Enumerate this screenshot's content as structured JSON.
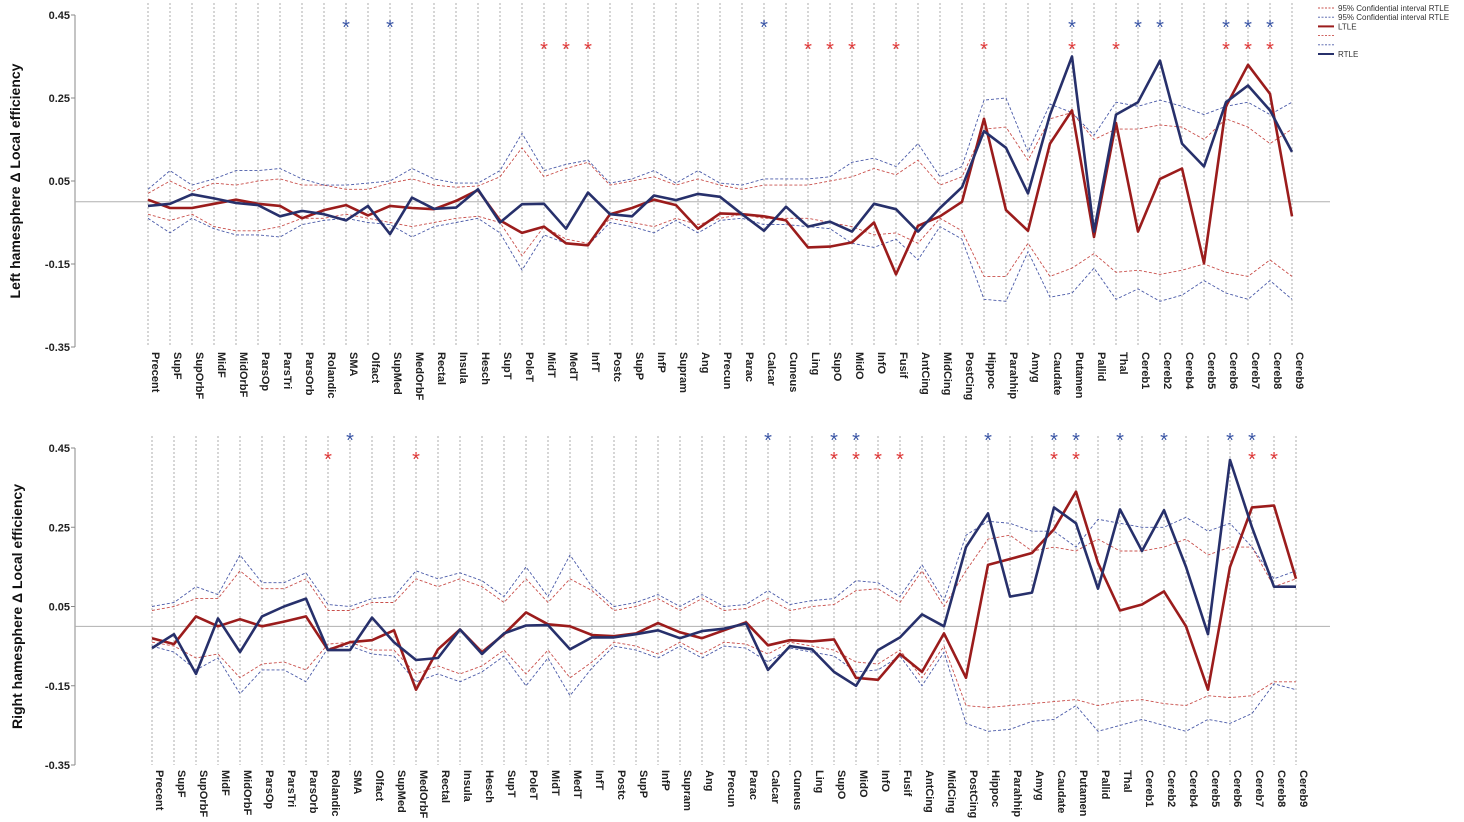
{
  "colors": {
    "ltle": "#9b1c1c",
    "rtle": "#27306b",
    "ltle_ci": "#c9504c",
    "rtle_ci": "#4a5aa8",
    "grid": "#9a9a9a",
    "refline": "#b0b0b0",
    "star_ltle": "#e03a3a",
    "star_rtle": "#3a55a5"
  },
  "legend": [
    {
      "label": "95% Confidential interval RTLE",
      "style": "dash",
      "color": "#c9504c"
    },
    {
      "label": "95% Confidential interval RTLE",
      "style": "dash",
      "color": "#4a5aa8"
    },
    {
      "label": "LTLE",
      "style": "solid",
      "color": "#9b1c1c"
    },
    {
      "label": "",
      "style": "dash",
      "color": "#c9504c"
    },
    {
      "label": "",
      "style": "dash",
      "color": "#4a5aa8"
    },
    {
      "label": "RTLE",
      "style": "solid",
      "color": "#27306b"
    }
  ],
  "chart_data": [
    {
      "type": "line",
      "title": "",
      "ylabel": "Left hamesphere Δ Local efficiency",
      "xlabel": "",
      "ylim": [
        -0.35,
        0.45
      ],
      "yticks": [
        "0.45",
        "0.25",
        "0.05",
        "-0.15",
        "-0.35"
      ],
      "reference_y": 0.0,
      "categories": [
        "Precent",
        "SupF",
        "SupOrbF",
        "MidF",
        "MidOrbF",
        "ParsOp",
        "ParsTri",
        "ParsOrb",
        "Rolandic",
        "SMA",
        "Olfact",
        "SupMed",
        "MedOrbF",
        "Rectal",
        "Insula",
        "Hesch",
        "SupT",
        "PoleT",
        "MidT",
        "MedT",
        "InfT",
        "Postc",
        "SupP",
        "InfP",
        "Supram",
        "Ang",
        "Precun",
        "Parac",
        "Calcar",
        "Cuneus",
        "Ling",
        "SupO",
        "MidO",
        "InfO",
        "Fusif",
        "AntCing",
        "MidCing",
        "PostCing",
        "Hippoc",
        "Parahhip",
        "Amyg",
        "Caudate",
        "Putamen",
        "Pallid",
        "Thal",
        "Cereb1",
        "Cereb2",
        "Cereb4",
        "Cereb5",
        "Cereb6",
        "Cereb7",
        "Cereb8",
        "Cereb9"
      ],
      "series": [
        {
          "name": "LTLE",
          "values": [
            0.005,
            -0.015,
            -0.015,
            -0.005,
            0.005,
            -0.005,
            -0.01,
            -0.04,
            -0.02,
            -0.008,
            -0.033,
            -0.01,
            -0.015,
            -0.018,
            0.002,
            0.028,
            -0.045,
            -0.075,
            -0.06,
            -0.1,
            -0.105,
            -0.03,
            -0.015,
            0.005,
            -0.008,
            -0.065,
            -0.028,
            -0.03,
            -0.035,
            -0.045,
            -0.11,
            -0.108,
            -0.098,
            -0.05,
            -0.175,
            -0.058,
            -0.035,
            0.0,
            0.2,
            -0.02,
            -0.07,
            0.14,
            0.22,
            -0.085,
            0.19,
            -0.072,
            0.055,
            0.08,
            -0.148,
            0.23,
            0.33,
            0.26,
            -0.035
          ]
        },
        {
          "name": "RTLE",
          "values": [
            -0.01,
            -0.005,
            0.018,
            0.008,
            -0.003,
            -0.008,
            -0.035,
            -0.022,
            -0.03,
            -0.045,
            -0.01,
            -0.078,
            0.01,
            -0.017,
            -0.014,
            0.03,
            -0.05,
            -0.006,
            -0.005,
            -0.065,
            0.022,
            -0.03,
            -0.035,
            0.015,
            0.004,
            0.019,
            0.012,
            -0.03,
            -0.07,
            -0.012,
            -0.06,
            -0.048,
            -0.072,
            -0.005,
            -0.018,
            -0.072,
            -0.015,
            0.035,
            0.17,
            0.13,
            0.02,
            0.21,
            0.35,
            -0.072,
            0.21,
            0.24,
            0.34,
            0.14,
            0.085,
            0.24,
            0.28,
            0.22,
            0.12
          ]
        },
        {
          "name": "LTLE 95% CI upper",
          "values": [
            0.02,
            0.05,
            0.025,
            0.045,
            0.04,
            0.05,
            0.055,
            0.04,
            0.04,
            0.03,
            0.03,
            0.045,
            0.055,
            0.04,
            0.035,
            0.038,
            0.06,
            0.13,
            0.06,
            0.08,
            0.095,
            0.04,
            0.05,
            0.06,
            0.04,
            0.055,
            0.04,
            0.03,
            0.04,
            0.04,
            0.04,
            0.05,
            0.06,
            0.08,
            0.065,
            0.1,
            0.04,
            0.06,
            0.175,
            0.18,
            0.1,
            0.2,
            0.215,
            0.15,
            0.175,
            0.175,
            0.185,
            0.18,
            0.15,
            0.2,
            0.18,
            0.14,
            0.175
          ]
        },
        {
          "name": "LTLE 95% CI lower",
          "values": [
            -0.03,
            -0.045,
            -0.03,
            -0.06,
            -0.07,
            -0.07,
            -0.06,
            -0.04,
            -0.04,
            -0.03,
            -0.04,
            -0.05,
            -0.06,
            -0.05,
            -0.04,
            -0.035,
            -0.05,
            -0.13,
            -0.06,
            -0.09,
            -0.1,
            -0.04,
            -0.05,
            -0.06,
            -0.04,
            -0.055,
            -0.04,
            -0.03,
            -0.04,
            -0.04,
            -0.04,
            -0.05,
            -0.06,
            -0.08,
            -0.075,
            -0.1,
            -0.04,
            -0.07,
            -0.18,
            -0.18,
            -0.1,
            -0.18,
            -0.16,
            -0.125,
            -0.17,
            -0.165,
            -0.175,
            -0.165,
            -0.15,
            -0.17,
            -0.18,
            -0.14,
            -0.18
          ]
        },
        {
          "name": "RTLE 95% CI upper",
          "values": [
            0.03,
            0.075,
            0.04,
            0.055,
            0.075,
            0.075,
            0.08,
            0.055,
            0.04,
            0.04,
            0.045,
            0.05,
            0.08,
            0.055,
            0.045,
            0.045,
            0.075,
            0.165,
            0.075,
            0.09,
            0.1,
            0.045,
            0.055,
            0.075,
            0.045,
            0.075,
            0.045,
            0.04,
            0.055,
            0.055,
            0.055,
            0.06,
            0.095,
            0.105,
            0.085,
            0.14,
            0.06,
            0.085,
            0.245,
            0.25,
            0.12,
            0.235,
            0.215,
            0.16,
            0.24,
            0.23,
            0.245,
            0.23,
            0.21,
            0.23,
            0.24,
            0.21,
            0.24
          ]
        },
        {
          "name": "RTLE 95% CI lower",
          "values": [
            -0.04,
            -0.075,
            -0.04,
            -0.065,
            -0.08,
            -0.08,
            -0.085,
            -0.055,
            -0.045,
            -0.04,
            -0.05,
            -0.055,
            -0.085,
            -0.06,
            -0.05,
            -0.04,
            -0.075,
            -0.165,
            -0.08,
            -0.1,
            -0.105,
            -0.05,
            -0.06,
            -0.075,
            -0.045,
            -0.075,
            -0.045,
            -0.04,
            -0.055,
            -0.055,
            -0.06,
            -0.065,
            -0.1,
            -0.11,
            -0.09,
            -0.14,
            -0.06,
            -0.09,
            -0.235,
            -0.24,
            -0.12,
            -0.23,
            -0.22,
            -0.16,
            -0.235,
            -0.21,
            -0.24,
            -0.225,
            -0.19,
            -0.22,
            -0.235,
            -0.19,
            -0.235
          ]
        }
      ],
      "stars_ltle": [
        "MidT",
        "MedT",
        "InfT",
        "Ling",
        "SupO",
        "MidO",
        "Fusif",
        "Hippoc",
        "Putamen",
        "Thal",
        "Cereb6",
        "Cereb7",
        "Cereb8"
      ],
      "stars_rtle": [
        "SMA",
        "SupMed",
        "Calcar",
        "Putamen",
        "Cereb1",
        "Cereb2",
        "Cereb6",
        "Cereb7",
        "Cereb8"
      ],
      "star_glyph": "*"
    },
    {
      "type": "line",
      "title": "",
      "ylabel": "Right hamesphere Δ Local efficiency",
      "xlabel": "",
      "ylim": [
        -0.35,
        0.45
      ],
      "yticks": [
        "0.45",
        "0.25",
        "0.05",
        "-0.15",
        "-0.35"
      ],
      "reference_y": 0.0,
      "categories": [
        "Precent",
        "SupF",
        "SupOrbF",
        "MidF",
        "MidOrbF",
        "ParsOp",
        "ParsTri",
        "ParsOrb",
        "Rolandic",
        "SMA",
        "Olfact",
        "SupMed",
        "MedOrbF",
        "Rectal",
        "Insula",
        "Hesch",
        "SupT",
        "PoleT",
        "MidT",
        "MedT",
        "InfT",
        "Postc",
        "SupP",
        "InfP",
        "Supram",
        "Ang",
        "Precun",
        "Parac",
        "Calcar",
        "Cuneus",
        "Ling",
        "SupO",
        "MidO",
        "InfO",
        "Fusif",
        "AntCing",
        "MidCing",
        "PostCing",
        "Hippoc",
        "Parahhip",
        "Amyg",
        "Caudate",
        "Putamen",
        "Pallid",
        "Thal",
        "Cereb1",
        "Cereb2",
        "Cereb4",
        "Cereb5",
        "Cereb6",
        "Cereb7",
        "Cereb8",
        "Cereb9"
      ],
      "series": [
        {
          "name": "LTLE",
          "values": [
            -0.03,
            -0.045,
            0.025,
            0.0,
            0.018,
            0.0,
            0.012,
            0.025,
            -0.06,
            -0.04,
            -0.035,
            -0.01,
            -0.16,
            -0.058,
            -0.008,
            -0.065,
            -0.02,
            0.035,
            0.005,
            0.0,
            -0.022,
            -0.025,
            -0.018,
            0.008,
            -0.015,
            -0.03,
            -0.01,
            0.01,
            -0.048,
            -0.035,
            -0.038,
            -0.033,
            -0.13,
            -0.135,
            -0.07,
            -0.115,
            -0.018,
            -0.13,
            0.155,
            0.17,
            0.185,
            0.245,
            0.34,
            0.16,
            0.04,
            0.055,
            0.088,
            0.0,
            -0.16,
            0.15,
            0.3,
            0.305,
            0.12
          ]
        },
        {
          "name": "RTLE",
          "values": [
            -0.055,
            -0.02,
            -0.12,
            0.02,
            -0.065,
            0.025,
            0.05,
            0.07,
            -0.06,
            -0.06,
            0.022,
            -0.04,
            -0.085,
            -0.08,
            -0.008,
            -0.07,
            -0.018,
            0.002,
            0.003,
            -0.058,
            -0.028,
            -0.028,
            -0.02,
            -0.01,
            -0.03,
            -0.012,
            -0.006,
            0.007,
            -0.11,
            -0.05,
            -0.058,
            -0.115,
            -0.15,
            -0.06,
            -0.028,
            0.03,
            0.0,
            0.2,
            0.285,
            0.075,
            0.085,
            0.3,
            0.26,
            0.095,
            0.295,
            0.19,
            0.293,
            0.15,
            -0.02,
            0.42,
            0.25,
            0.1,
            0.1
          ]
        },
        {
          "name": "LTLE 95% CI upper",
          "values": [
            0.04,
            0.05,
            0.07,
            0.07,
            0.14,
            0.095,
            0.095,
            0.12,
            0.04,
            0.04,
            0.06,
            0.06,
            0.12,
            0.1,
            0.12,
            0.1,
            0.06,
            0.12,
            0.06,
            0.12,
            0.09,
            0.04,
            0.05,
            0.07,
            0.04,
            0.07,
            0.04,
            0.045,
            0.07,
            0.04,
            0.05,
            0.055,
            0.09,
            0.095,
            0.06,
            0.14,
            0.05,
            0.14,
            0.22,
            0.23,
            0.19,
            0.2,
            0.19,
            0.22,
            0.19,
            0.19,
            0.2,
            0.22,
            0.18,
            0.2,
            0.2,
            0.1,
            0.12
          ]
        },
        {
          "name": "LTLE 95% CI lower",
          "values": [
            -0.04,
            -0.05,
            -0.08,
            -0.07,
            -0.13,
            -0.095,
            -0.09,
            -0.11,
            -0.045,
            -0.04,
            -0.06,
            -0.06,
            -0.12,
            -0.1,
            -0.12,
            -0.1,
            -0.06,
            -0.12,
            -0.06,
            -0.13,
            -0.09,
            -0.04,
            -0.05,
            -0.07,
            -0.04,
            -0.07,
            -0.04,
            -0.045,
            -0.07,
            -0.04,
            -0.05,
            -0.06,
            -0.09,
            -0.095,
            -0.06,
            -0.13,
            -0.05,
            -0.2,
            -0.205,
            -0.2,
            -0.195,
            -0.19,
            -0.185,
            -0.2,
            -0.19,
            -0.185,
            -0.195,
            -0.2,
            -0.175,
            -0.18,
            -0.175,
            -0.14,
            -0.14
          ]
        },
        {
          "name": "RTLE 95% CI upper",
          "values": [
            0.05,
            0.06,
            0.1,
            0.08,
            0.18,
            0.11,
            0.11,
            0.135,
            0.055,
            0.05,
            0.07,
            0.075,
            0.14,
            0.12,
            0.135,
            0.115,
            0.075,
            0.15,
            0.075,
            0.18,
            0.1,
            0.05,
            0.06,
            0.08,
            0.05,
            0.08,
            0.05,
            0.055,
            0.09,
            0.055,
            0.065,
            0.07,
            0.115,
            0.11,
            0.075,
            0.155,
            0.065,
            0.23,
            0.265,
            0.26,
            0.24,
            0.24,
            0.2,
            0.27,
            0.26,
            0.25,
            0.25,
            0.275,
            0.24,
            0.26,
            0.2,
            0.12,
            0.14
          ]
        },
        {
          "name": "RTLE 95% CI lower",
          "values": [
            -0.05,
            -0.065,
            -0.11,
            -0.08,
            -0.17,
            -0.11,
            -0.11,
            -0.14,
            -0.055,
            -0.05,
            -0.07,
            -0.075,
            -0.14,
            -0.12,
            -0.14,
            -0.115,
            -0.075,
            -0.15,
            -0.08,
            -0.175,
            -0.105,
            -0.05,
            -0.06,
            -0.08,
            -0.05,
            -0.08,
            -0.05,
            -0.055,
            -0.09,
            -0.055,
            -0.065,
            -0.075,
            -0.115,
            -0.11,
            -0.075,
            -0.15,
            -0.065,
            -0.245,
            -0.265,
            -0.26,
            -0.24,
            -0.235,
            -0.2,
            -0.265,
            -0.25,
            -0.235,
            -0.25,
            -0.265,
            -0.235,
            -0.245,
            -0.22,
            -0.145,
            -0.16
          ]
        }
      ],
      "stars_ltle": [
        "Rolandic",
        "MedOrbF",
        "SupO",
        "MidO",
        "InfO",
        "Fusif",
        "Caudate",
        "Putamen",
        "Cereb7",
        "Cereb8"
      ],
      "stars_rtle": [
        "SMA",
        "Calcar",
        "SupO",
        "MidO",
        "Hippoc",
        "Caudate",
        "Putamen",
        "Thal",
        "Cereb2",
        "Cereb6",
        "Cereb7"
      ],
      "star_glyph": "*"
    }
  ]
}
